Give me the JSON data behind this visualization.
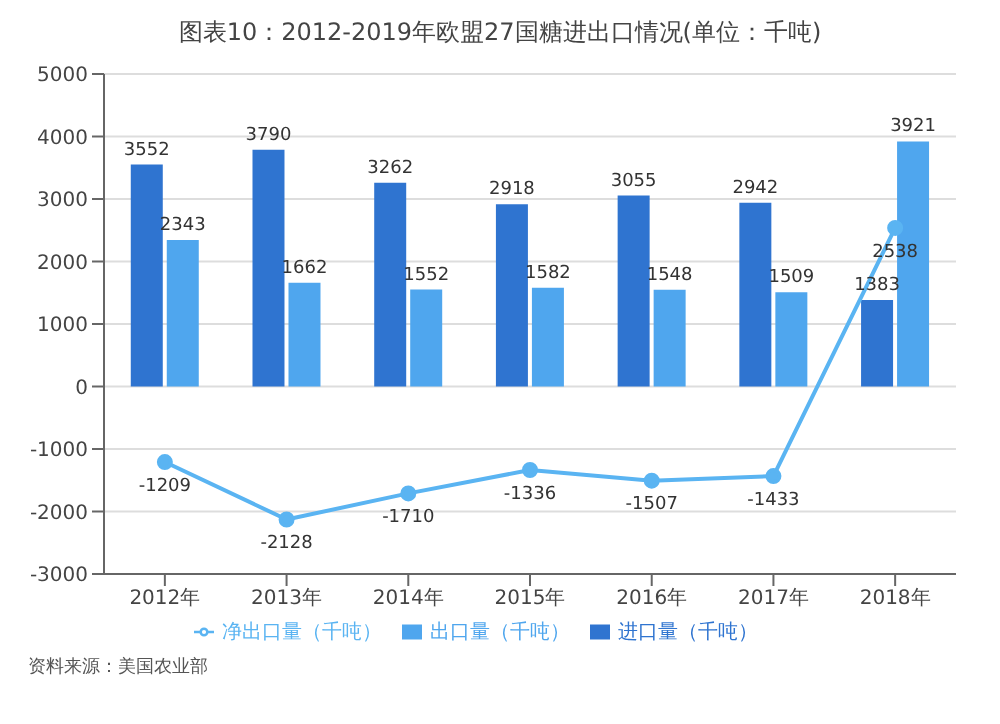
{
  "chart_data": {
    "type": "bar",
    "title": "图表10：2012-2019年欧盟27国糖进出口情况(单位：千吨)",
    "categories": [
      "2012年",
      "2013年",
      "2014年",
      "2015年",
      "2016年",
      "2017年",
      "2018年"
    ],
    "series": [
      {
        "name": "进口量（千吨）",
        "color": "#2f74d0",
        "values": [
          3552,
          3790,
          3262,
          2918,
          3055,
          2942,
          1383
        ]
      },
      {
        "name": "出口量（千吨）",
        "color": "#4fa6ee",
        "values": [
          2343,
          1662,
          1552,
          1582,
          1548,
          1509,
          3921
        ]
      },
      {
        "name": "净出口量（千吨）",
        "type": "line",
        "color": "#5ab4f2",
        "values": [
          -1209,
          -2128,
          -1710,
          -1336,
          -1507,
          -1433,
          2538
        ]
      }
    ],
    "ylim": [
      -3000,
      5000
    ],
    "yticks": [
      -3000,
      -2000,
      -1000,
      0,
      1000,
      2000,
      3000,
      4000,
      5000
    ],
    "grid": "y",
    "legend": "bottom",
    "marker": "circle",
    "data_labels": true,
    "annotations": [
      "资料来源：美国农业部"
    ]
  }
}
